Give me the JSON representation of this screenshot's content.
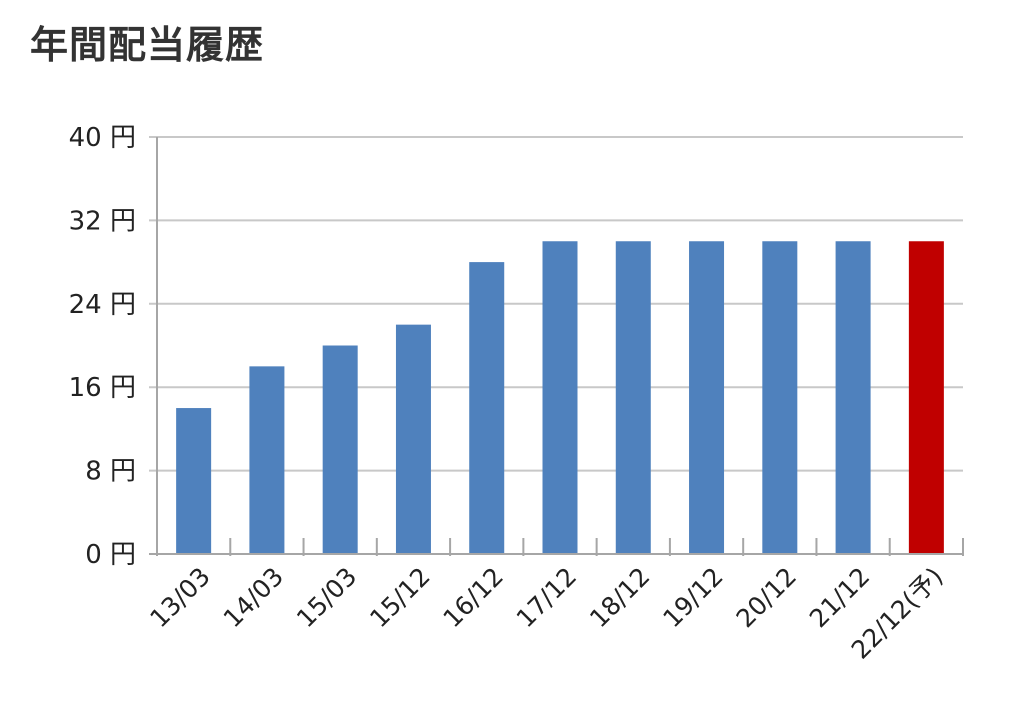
{
  "chart_data": {
    "type": "bar",
    "title": "年間配当履歴",
    "xlabel": "",
    "ylabel": "",
    "unit": "円",
    "categories": [
      "13/03",
      "14/03",
      "15/03",
      "15/12",
      "16/12",
      "17/12",
      "18/12",
      "19/12",
      "20/12",
      "21/12",
      "22/12(予)"
    ],
    "values": [
      14,
      18,
      20,
      22,
      28,
      30,
      30,
      30,
      30,
      30,
      30
    ],
    "ylim": [
      0,
      40
    ],
    "yticks": [
      0,
      8,
      16,
      24,
      32,
      40
    ],
    "ytick_labels": [
      "0 円",
      "8 円",
      "16 円",
      "24 円",
      "32 円",
      "40 円"
    ],
    "grid": true,
    "legend": "none",
    "colors": {
      "actual": "#4f81bd",
      "forecast": "#c00000",
      "grid": "#c8c8c8",
      "axis": "#a6a6a6"
    },
    "forecast_index": 10
  }
}
